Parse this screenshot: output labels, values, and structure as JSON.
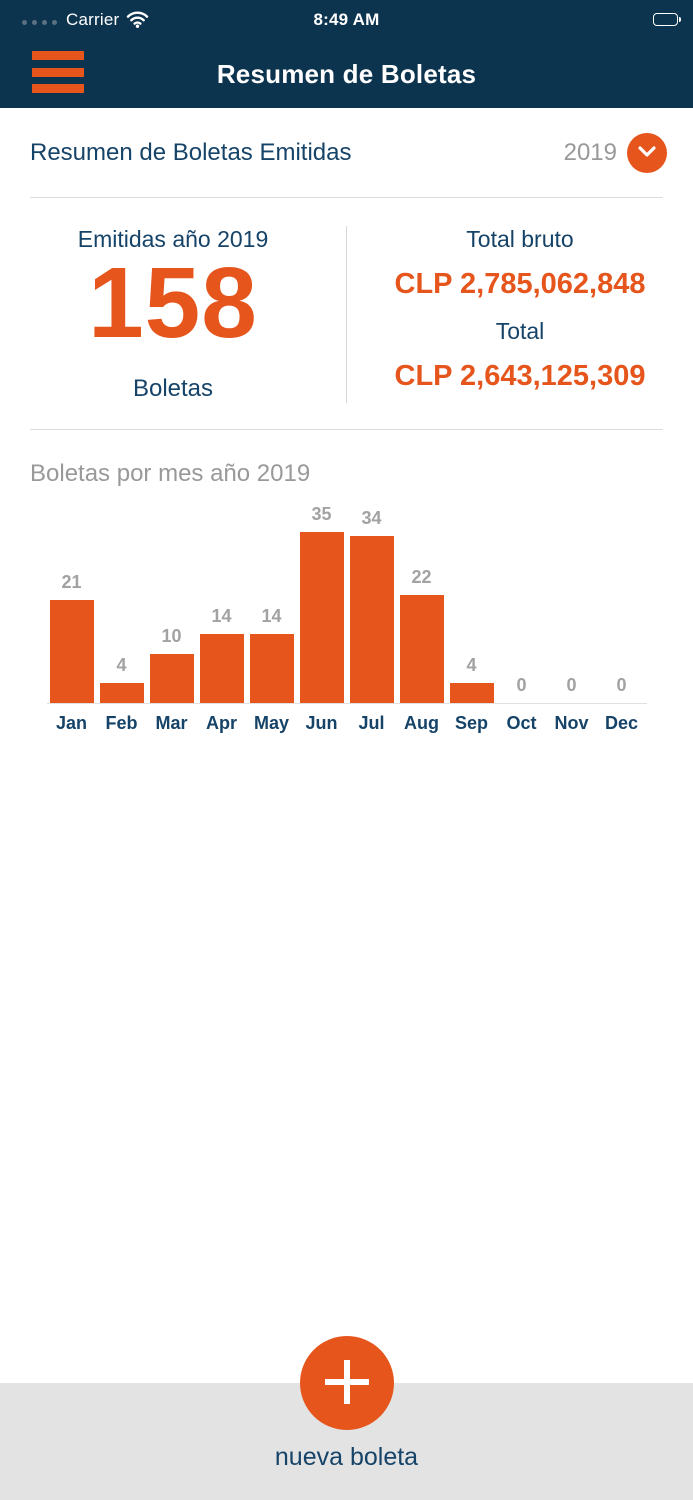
{
  "status_bar": {
    "carrier": "Carrier",
    "time": "8:49 AM",
    "battery_level": "full"
  },
  "nav_bar": {
    "title": "Resumen de Boletas"
  },
  "summary": {
    "section_title": "Resumen de Boletas Emitidas",
    "year_selected": "2019",
    "emitted": {
      "label": "Emitidas año 2019",
      "count": "158",
      "unit": "Boletas"
    },
    "totals": {
      "gross_label": "Total bruto",
      "gross_value": "CLP 2,785,062,848",
      "net_label": "Total",
      "net_value": "CLP 2,643,125,309"
    }
  },
  "chart_data": {
    "type": "bar",
    "title": "Boletas por mes año 2019",
    "categories": [
      "Jan",
      "Feb",
      "Mar",
      "Apr",
      "May",
      "Jun",
      "Jul",
      "Aug",
      "Sep",
      "Oct",
      "Nov",
      "Dec"
    ],
    "values": [
      21,
      4,
      10,
      14,
      14,
      35,
      34,
      22,
      4,
      0,
      0,
      0
    ],
    "ylim": [
      0,
      35
    ],
    "grid": false,
    "value_labels": true,
    "bar_color": "#e5551c"
  },
  "fab": {
    "label": "nueva boleta"
  },
  "colors": {
    "navy_background": "#0d344f",
    "navy_text": "#164368",
    "accent_orange": "#e5551c",
    "gray_text": "#999999",
    "bottom_bar_gray": "#e3e3e3"
  }
}
